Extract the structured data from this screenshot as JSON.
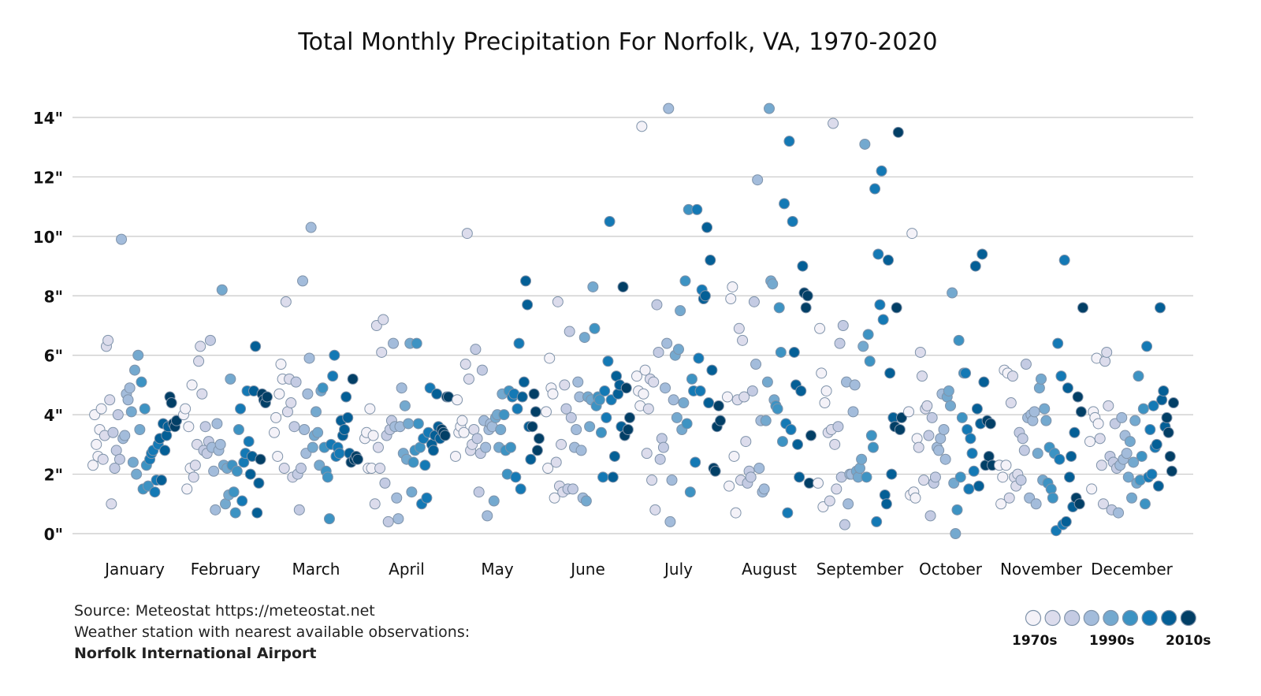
{
  "chart_data": {
    "type": "scatter",
    "title": "Total Monthly Precipitation For Norfolk, VA, 1970-2020",
    "ylim": [
      0,
      14
    ],
    "yticks": [
      0,
      2,
      4,
      6,
      8,
      10,
      12,
      14
    ],
    "ytick_labels": [
      "0\"",
      "2\"",
      "4\"",
      "6\"",
      "8\"",
      "10\"",
      "12\"",
      "14\""
    ],
    "grid": true,
    "years": [
      1970,
      2020
    ],
    "categories": [
      "January",
      "February",
      "March",
      "April",
      "May",
      "June",
      "July",
      "August",
      "September",
      "October",
      "November",
      "December"
    ],
    "values_by_month_in_year_order": [
      [
        2.3,
        4.0,
        3.0,
        2.6,
        3.5,
        4.2,
        2.5,
        3.3,
        6.3,
        6.5,
        4.5,
        1.0,
        3.4,
        2.2,
        2.8,
        4.0,
        2.5,
        9.9,
        3.2,
        3.3,
        4.7,
        4.5,
        4.9,
        4.1,
        2.4,
        5.5,
        2.0,
        6.0,
        3.5,
        5.1,
        1.5,
        4.2,
        2.3,
        1.6,
        2.5,
        2.7,
        2.8,
        1.4,
        1.8,
        3.0,
        3.2,
        1.8,
        3.7,
        2.8,
        3.3,
        3.6,
        4.6,
        4.4,
        3.7,
        3.6,
        3.8
      ],
      [
        4.0,
        4.2,
        1.5,
        3.6,
        2.2,
        5.0,
        1.9,
        2.3,
        3.0,
        5.8,
        6.3,
        4.7,
        2.8,
        3.6,
        2.7,
        3.1,
        6.5,
        2.9,
        2.1,
        0.8,
        3.7,
        2.8,
        3.0,
        8.2,
        2.3,
        1.0,
        2.2,
        1.3,
        5.2,
        2.3,
        1.4,
        0.7,
        2.1,
        3.5,
        4.2,
        1.1,
        2.4,
        2.7,
        4.8,
        3.1,
        2.0,
        2.6,
        4.8,
        6.3,
        0.7,
        1.7,
        2.5,
        4.7,
        4.5,
        4.4,
        4.6
      ],
      [
        3.4,
        3.9,
        2.6,
        4.7,
        5.7,
        5.2,
        2.2,
        7.8,
        4.1,
        5.2,
        4.4,
        1.9,
        3.6,
        5.1,
        2.0,
        0.8,
        2.2,
        8.5,
        3.5,
        2.7,
        4.7,
        5.9,
        10.3,
        2.9,
        3.3,
        4.1,
        3.4,
        2.3,
        4.8,
        4.9,
        2.9,
        2.1,
        1.9,
        0.5,
        3.0,
        5.3,
        6.0,
        2.6,
        2.9,
        2.7,
        3.8,
        3.3,
        3.5,
        4.6,
        3.9,
        2.7,
        2.4,
        5.2,
        2.5,
        2.6,
        2.5
      ],
      [
        3.2,
        3.4,
        2.2,
        4.2,
        2.2,
        3.3,
        1.0,
        7.0,
        2.9,
        2.2,
        6.1,
        7.2,
        1.7,
        3.3,
        0.4,
        3.5,
        3.8,
        6.4,
        3.6,
        1.2,
        0.5,
        3.6,
        4.9,
        2.7,
        4.3,
        2.5,
        3.7,
        6.4,
        1.4,
        2.4,
        2.8,
        6.4,
        3.7,
        2.9,
        1.0,
        3.2,
        2.3,
        1.2,
        3.4,
        4.9,
        3.0,
        2.8,
        3.3,
        4.7,
        3.6,
        3.2,
        3.5,
        3.4,
        3.3,
        4.6,
        4.6
      ],
      [
        2.6,
        4.5,
        3.4,
        3.6,
        3.8,
        3.4,
        5.7,
        10.1,
        5.2,
        2.8,
        3.0,
        3.5,
        6.2,
        3.2,
        1.4,
        2.7,
        5.5,
        3.8,
        2.9,
        0.6,
        3.5,
        3.7,
        3.6,
        1.1,
        3.9,
        4.0,
        2.9,
        3.5,
        4.7,
        4.0,
        2.8,
        2.0,
        4.8,
        2.9,
        4.6,
        4.7,
        1.9,
        4.2,
        6.4,
        1.5,
        4.6,
        5.1,
        8.5,
        7.7,
        3.6,
        2.5,
        3.6,
        4.7,
        4.1,
        2.8,
        3.2
      ],
      [
        4.1,
        2.2,
        5.9,
        4.9,
        4.7,
        1.2,
        2.4,
        7.8,
        1.6,
        3.0,
        1.4,
        5.0,
        4.2,
        1.5,
        6.8,
        3.9,
        1.5,
        2.9,
        3.5,
        5.1,
        4.6,
        2.8,
        1.2,
        6.6,
        1.1,
        4.6,
        3.6,
        4.5,
        8.3,
        6.9,
        4.3,
        4.6,
        4.5,
        3.4,
        1.9,
        4.8,
        3.9,
        5.8,
        10.5,
        4.5,
        1.9,
        2.6,
        5.3,
        4.7,
        5.0,
        3.6,
        8.3,
        3.3,
        4.9,
        3.5,
        3.9
      ],
      [
        5.3,
        4.8,
        4.3,
        13.7,
        4.7,
        5.5,
        2.7,
        4.2,
        5.2,
        1.8,
        5.1,
        0.8,
        7.7,
        6.1,
        2.5,
        3.2,
        2.9,
        4.9,
        6.4,
        14.3,
        0.4,
        1.8,
        4.5,
        6.0,
        3.9,
        6.2,
        7.5,
        3.5,
        4.4,
        8.5,
        3.7,
        10.9,
        1.4,
        5.2,
        4.8,
        2.4,
        10.9,
        5.9,
        4.8,
        8.2,
        7.9,
        8.0,
        10.3,
        4.4,
        9.2,
        5.5,
        2.2,
        2.1,
        3.6,
        4.3,
        3.8
      ],
      [
        4.6,
        1.6,
        7.9,
        8.3,
        2.6,
        0.7,
        4.5,
        6.9,
        1.8,
        6.5,
        4.6,
        3.1,
        1.7,
        2.1,
        1.9,
        4.8,
        7.8,
        5.7,
        11.9,
        2.2,
        3.8,
        1.4,
        1.5,
        3.8,
        5.1,
        14.3,
        8.5,
        8.4,
        4.5,
        4.3,
        4.2,
        7.6,
        6.1,
        3.1,
        11.1,
        3.7,
        0.7,
        13.2,
        3.5,
        10.5,
        6.1,
        5.0,
        3.0,
        1.9,
        4.8,
        9.0,
        8.1,
        7.6,
        8.0,
        1.7,
        3.3
      ],
      [
        1.7,
        6.9,
        5.4,
        0.9,
        4.4,
        4.8,
        3.4,
        1.1,
        3.5,
        13.8,
        3.0,
        1.5,
        3.6,
        6.4,
        1.9,
        7.0,
        0.3,
        5.1,
        1.0,
        2.0,
        2.0,
        4.1,
        5.0,
        2.1,
        1.9,
        2.2,
        2.5,
        6.3,
        13.1,
        1.9,
        6.7,
        5.8,
        3.3,
        2.9,
        11.6,
        0.4,
        9.4,
        7.7,
        12.2,
        7.2,
        1.3,
        1.0,
        9.2,
        5.4,
        2.0,
        3.9,
        3.6,
        7.6,
        13.5,
        3.5,
        3.9
      ],
      [
        4.1,
        1.3,
        10.1,
        1.4,
        1.2,
        3.2,
        2.9,
        6.1,
        5.3,
        1.8,
        4.2,
        4.3,
        3.3,
        0.6,
        3.9,
        1.7,
        1.9,
        2.9,
        2.8,
        3.2,
        4.7,
        3.5,
        2.5,
        4.6,
        4.8,
        4.3,
        8.1,
        1.7,
        0.0,
        0.8,
        6.5,
        1.9,
        3.9,
        5.4,
        5.4,
        3.5,
        1.5,
        3.2,
        2.7,
        2.1,
        9.0,
        4.2,
        1.6,
        3.7,
        9.4,
        5.1,
        2.3,
        3.8,
        2.6,
        3.7,
        2.3
      ],
      [
        2.3,
        1.0,
        1.9,
        5.5,
        2.3,
        5.4,
        1.2,
        4.4,
        5.3,
        1.9,
        1.6,
        2.0,
        3.4,
        1.8,
        3.2,
        2.8,
        5.7,
        3.9,
        1.2,
        4.0,
        3.8,
        4.1,
        1.0,
        2.7,
        4.9,
        5.2,
        1.8,
        4.2,
        3.8,
        1.7,
        2.9,
        1.5,
        1.2,
        2.7,
        0.1,
        6.4,
        2.5,
        5.3,
        0.3,
        9.2,
        0.4,
        4.9,
        1.9,
        2.6,
        0.9,
        3.4,
        1.2,
        4.6,
        1.0,
        4.1,
        7.6
      ],
      [
        3.1,
        1.5,
        4.1,
        3.9,
        5.9,
        3.7,
        3.2,
        2.3,
        1.0,
        5.8,
        6.1,
        4.3,
        2.6,
        0.8,
        2.4,
        3.7,
        2.2,
        0.7,
        2.3,
        3.9,
        2.5,
        3.3,
        2.7,
        1.9,
        3.1,
        1.2,
        2.4,
        3.8,
        1.7,
        5.3,
        1.8,
        2.6,
        4.2,
        1.0,
        6.3,
        1.9,
        3.5,
        2.0,
        4.3,
        2.9,
        3.0,
        1.6,
        7.6,
        4.5,
        4.8,
        3.6,
        3.9,
        3.4,
        2.6,
        2.1,
        4.4
      ]
    ],
    "legend": {
      "placement": "bottom-right",
      "labels": [
        "1970s",
        "1990s",
        "2010s"
      ],
      "colors": [
        "#f4f2f8",
        "#dcdcec",
        "#c4cbe3",
        "#a3bcdb",
        "#74a9cf",
        "#3d93c3",
        "#1479b5",
        "#045f96",
        "#023f66"
      ]
    },
    "point_stroke": "#7f93aa"
  },
  "footer": {
    "source": "Source: Meteostat https://meteostat.net",
    "station_note": "Weather station with nearest available observations:",
    "station": "Norfolk International Airport"
  }
}
